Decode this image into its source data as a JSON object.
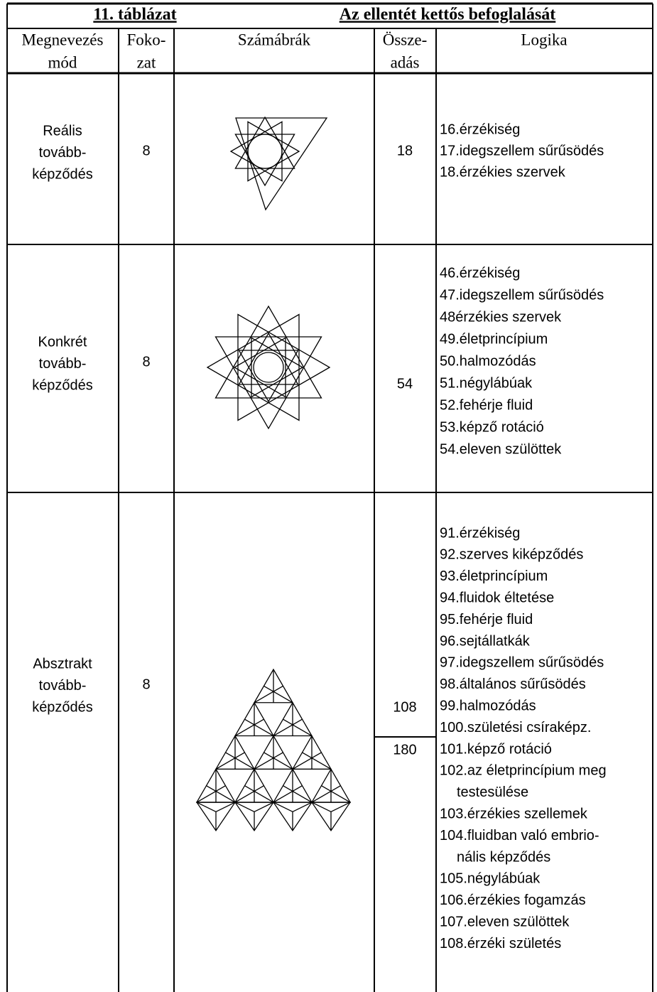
{
  "header": {
    "number": "11. táblázat",
    "title": "Az ellentét kettős befoglalását"
  },
  "table": {
    "columns": [
      [
        "Megnevezés",
        "mód"
      ],
      [
        "Foko-",
        "zat"
      ],
      [
        "Számábrák"
      ],
      [
        "Össze-",
        "adás"
      ],
      [
        "Logika"
      ]
    ],
    "rows": [
      {
        "name": [
          "Reális",
          "tovább-",
          "képződés"
        ],
        "grade": 8,
        "sum": [
          18
        ],
        "logic": [
          [
            "16.érzékiség"
          ],
          [
            "17.idegszellem sűrűsödés"
          ],
          [
            "18.érzékies szervek"
          ]
        ]
      },
      {
        "name": [
          "Konkrét",
          "tovább-",
          "képződés"
        ],
        "grade": 8,
        "sum": [
          54
        ],
        "logic": [
          [
            "46.érzékiség"
          ],
          [
            "47.idegszellem sűrűsödés"
          ],
          [
            "48érzékies szervek"
          ],
          [
            "49.életprincípium"
          ],
          [
            "50.halmozódás"
          ],
          [
            "51.négylábúak"
          ],
          [
            "52.fehérje fluid"
          ],
          [
            "53.képző rotáció"
          ],
          [
            "54.eleven szülöttek"
          ]
        ]
      },
      {
        "name": [
          "Absztrakt",
          "tovább-",
          "képződés"
        ],
        "grade": 8,
        "sum": [
          108,
          180
        ],
        "logic": [
          [
            "91.érzékiség"
          ],
          [
            "92.szerves kiképződés"
          ],
          [
            "93.életprincípium"
          ],
          [
            "94.fluidok éltetése"
          ],
          [
            "95.fehérje fluid"
          ],
          [
            "96.sejtállatkák"
          ],
          [
            "97.idegszellem sűrűsödés"
          ],
          [
            "98.általános sűrűsödés"
          ],
          [
            "99.halmozódás"
          ],
          [
            "100.születési csíraképz."
          ],
          [
            "101.képző rotáció"
          ],
          [
            "102.az életprincípium meg",
            "testesülése"
          ],
          [
            "103.érzékies szellemek"
          ],
          [
            "104.fluidban való embrio-",
            "nális képződés"
          ],
          [
            "105.négylábúak"
          ],
          [
            "106.érzékies fogamzás"
          ],
          [
            "107.eleven szülöttek"
          ],
          [
            "108.érzéki születés"
          ]
        ]
      }
    ]
  }
}
